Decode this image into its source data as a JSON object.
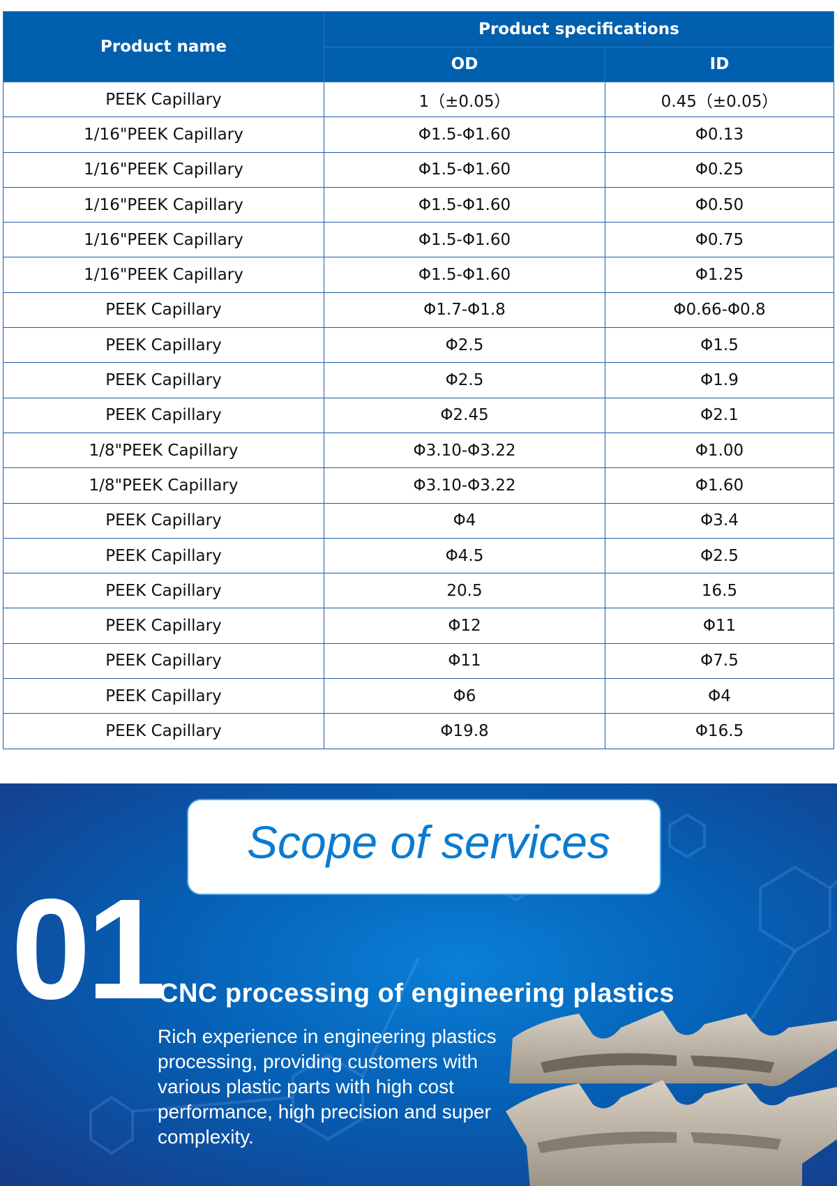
{
  "table": {
    "headers": {
      "name": "Product name",
      "specs": "Product specifications",
      "od": "OD",
      "id": "ID"
    },
    "rows": [
      [
        "PEEK Capillary",
        "1（±0.05）",
        "0.45（±0.05）"
      ],
      [
        "1/16\"PEEK Capillary",
        "Φ1.5-Φ1.60",
        "Φ0.13"
      ],
      [
        "1/16\"PEEK Capillary",
        "Φ1.5-Φ1.60",
        "Φ0.25"
      ],
      [
        "1/16\"PEEK Capillary",
        "Φ1.5-Φ1.60",
        "Φ0.50"
      ],
      [
        "1/16\"PEEK Capillary",
        "Φ1.5-Φ1.60",
        "Φ0.75"
      ],
      [
        "1/16\"PEEK Capillary",
        "Φ1.5-Φ1.60",
        "Φ1.25"
      ],
      [
        "PEEK Capillary",
        "Φ1.7-Φ1.8",
        "Φ0.66-Φ0.8"
      ],
      [
        "PEEK Capillary",
        "Φ2.5",
        "Φ1.5"
      ],
      [
        "PEEK Capillary",
        "Φ2.5",
        "Φ1.9"
      ],
      [
        "PEEK Capillary",
        "Φ2.45",
        "Φ2.1"
      ],
      [
        "1/8\"PEEK Capillary",
        "Φ3.10-Φ3.22",
        "Φ1.00"
      ],
      [
        "1/8\"PEEK Capillary",
        "Φ3.10-Φ3.22",
        "Φ1.60"
      ],
      [
        "PEEK Capillary",
        "Φ4",
        "Φ3.4"
      ],
      [
        "PEEK Capillary",
        "Φ4.5",
        "Φ2.5"
      ],
      [
        "PEEK Capillary",
        "20.5",
        "16.5"
      ],
      [
        "PEEK Capillary",
        "Φ12",
        "Φ11"
      ],
      [
        "PEEK Capillary",
        "Φ11",
        "Φ7.5"
      ],
      [
        "PEEK Capillary",
        "Φ6",
        "Φ4"
      ],
      [
        "PEEK Capillary",
        "Φ19.8",
        "Φ16.5"
      ]
    ]
  },
  "services": {
    "title": "Scope of services",
    "number": "01",
    "heading": "CNC processing of engineering plastics",
    "body": "Rich experience in engineering plastics processing, providing customers with various plastic parts with high cost performance, high precision and super complexity."
  },
  "colors": {
    "header_blue": "#0060ae",
    "title_blue": "#0b7bd0",
    "border_blue": "#1d5aa8"
  }
}
